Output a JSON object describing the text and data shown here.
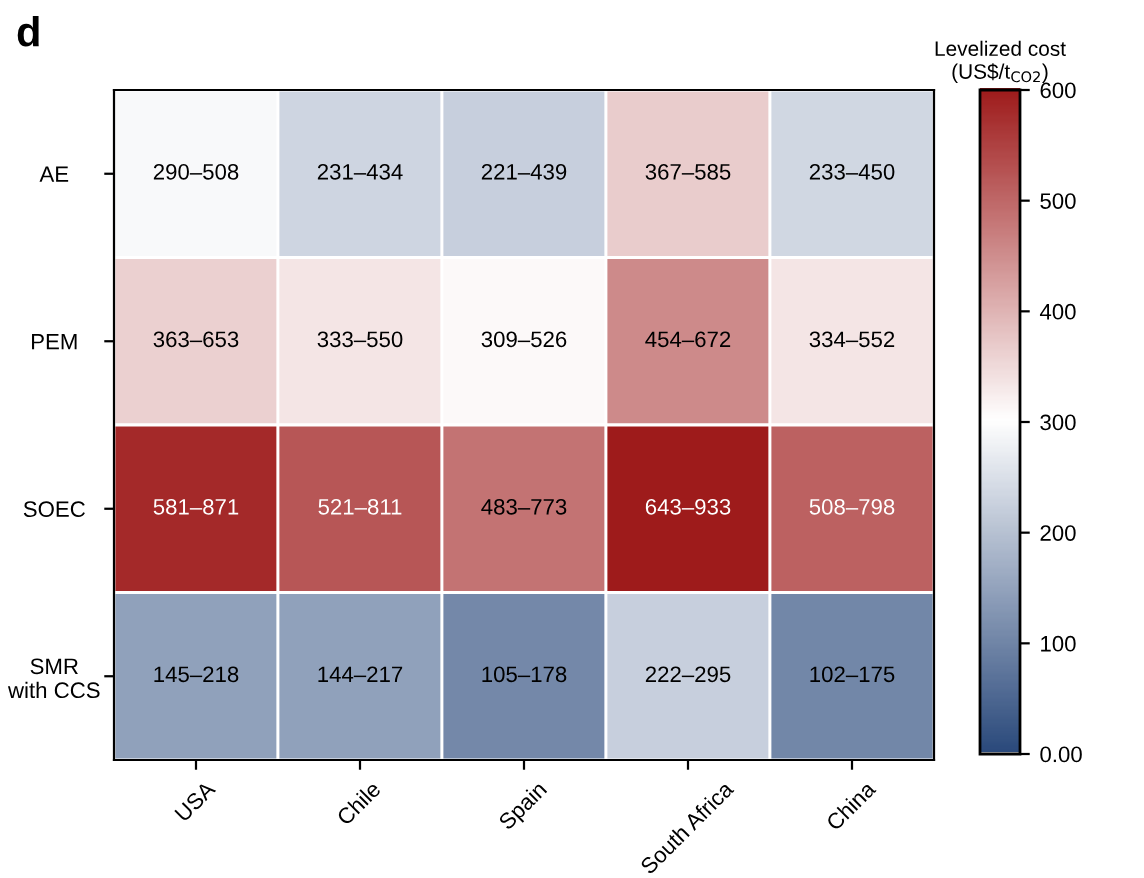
{
  "chart_data": {
    "type": "heatmap",
    "title": "d",
    "clabel": "Levelized cost\n(US$/t$_{CO2}$)",
    "categories": [
      "USA",
      "Chile",
      "Spain",
      "South Africa",
      "China"
    ],
    "y_categories": [
      "AE",
      "PEM",
      "SOEC",
      "SMR\nwith CCS"
    ],
    "cells": [
      [
        290,
        231,
        221,
        367,
        233
      ],
      [
        363,
        333,
        309,
        454,
        334
      ],
      [
        581,
        521,
        483,
        643,
        508
      ],
      [
        145,
        144,
        105,
        222,
        102
      ]
    ],
    "cell_labels": [
      [
        "290–508",
        "231–434",
        "221–439",
        "367–585",
        "233–450"
      ],
      [
        "363–653",
        "333–550",
        "309–526",
        "454–672",
        "334–552"
      ],
      [
        "581–871",
        "521–811",
        "483–773",
        "643–933",
        "508–798"
      ],
      [
        "145–218",
        "144–217",
        "105–178",
        "222–295",
        "102–175"
      ]
    ],
    "clim": [
      0,
      600
    ],
    "cticks": [
      {
        "value": 0,
        "label": "0.00"
      },
      100,
      200,
      300,
      400,
      500,
      600
    ],
    "colors": [
      "#2b4a7c",
      "#ffffff",
      "#9e1b1b"
    ]
  }
}
